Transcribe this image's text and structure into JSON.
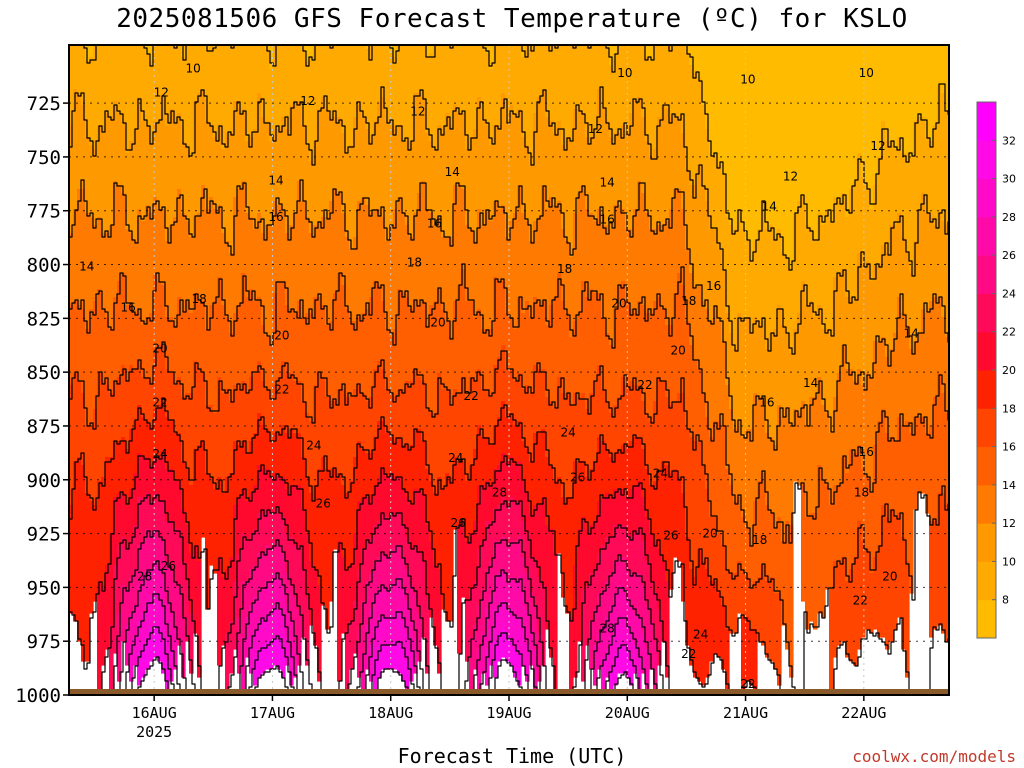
{
  "chart_data": {
    "type": "heatmap",
    "title": "2025081506 GFS Forecast Temperature (ºC) for KSLO",
    "xlabel": "Forecast Time (UTC)",
    "ylabel": "",
    "source": "coolwx.com/models",
    "y_axis": {
      "scale": "pressure (reversed)",
      "range": [
        1000,
        698
      ],
      "ticks": [
        "725",
        "750",
        "775",
        "800",
        "825",
        "850",
        "875",
        "900",
        "925",
        "950",
        "975",
        "1000"
      ]
    },
    "x_axis": {
      "range_days_from_16AUG_00Z": [
        -0.72,
        6.72
      ],
      "ticks": [
        {
          "label": "16AUG",
          "sub": "2025",
          "day": 0
        },
        {
          "label": "17AUG",
          "sub": "",
          "day": 1
        },
        {
          "label": "18AUG",
          "sub": "",
          "day": 2
        },
        {
          "label": "19AUG",
          "sub": "",
          "day": 3
        },
        {
          "label": "20AUG",
          "sub": "",
          "day": 4
        },
        {
          "label": "21AUG",
          "sub": "",
          "day": 5
        },
        {
          "label": "22AUG",
          "sub": "",
          "day": 6
        }
      ]
    },
    "grid": "dotted",
    "colorbar": {
      "levels": [
        6,
        8,
        10,
        12,
        14,
        16,
        18,
        20,
        22,
        24,
        26,
        28,
        30,
        32,
        34
      ],
      "tick_labels": [
        "8",
        "10",
        "12",
        "14",
        "16",
        "18",
        "20",
        "22",
        "24",
        "26",
        "28",
        "30",
        "32"
      ],
      "colors": [
        "#ffbb00",
        "#ffaa00",
        "#ff9900",
        "#ff7a00",
        "#ff5f00",
        "#ff4500",
        "#ff2200",
        "#ff0a2e",
        "#ff0a58",
        "#ff0a84",
        "#ff0aa8",
        "#ff0ac8",
        "#ff0ae6",
        "#ff00ff"
      ]
    },
    "surface_pressure_hpa": 1000,
    "contour_labels": [
      {
        "day": 0.33,
        "p": 709,
        "text": "10"
      },
      {
        "day": 3.98,
        "p": 711,
        "text": "10"
      },
      {
        "day": 5.02,
        "p": 714,
        "text": "10"
      },
      {
        "day": 6.02,
        "p": 711,
        "text": "10"
      },
      {
        "day": 0.06,
        "p": 720,
        "text": "12"
      },
      {
        "day": 1.3,
        "p": 724,
        "text": "12"
      },
      {
        "day": 2.23,
        "p": 729,
        "text": "12"
      },
      {
        "day": 3.73,
        "p": 737,
        "text": "12"
      },
      {
        "day": 6.12,
        "p": 745,
        "text": "12"
      },
      {
        "day": 5.38,
        "p": 759,
        "text": "12"
      },
      {
        "day": 1.03,
        "p": 761,
        "text": "14"
      },
      {
        "day": 2.52,
        "p": 757,
        "text": "14"
      },
      {
        "day": 3.83,
        "p": 762,
        "text": "14"
      },
      {
        "day": 5.2,
        "p": 773,
        "text": "14"
      },
      {
        "day": -0.57,
        "p": 801,
        "text": "14"
      },
      {
        "day": 6.4,
        "p": 832,
        "text": "14"
      },
      {
        "day": 5.55,
        "p": 855,
        "text": "14"
      },
      {
        "day": 1.03,
        "p": 778,
        "text": "16"
      },
      {
        "day": 2.37,
        "p": 781,
        "text": "16"
      },
      {
        "day": 3.83,
        "p": 779,
        "text": "16"
      },
      {
        "day": -0.22,
        "p": 820,
        "text": "16"
      },
      {
        "day": 4.73,
        "p": 810,
        "text": "16"
      },
      {
        "day": 5.18,
        "p": 864,
        "text": "16"
      },
      {
        "day": 6.02,
        "p": 887,
        "text": "16"
      },
      {
        "day": 0.38,
        "p": 816,
        "text": "18"
      },
      {
        "day": 2.2,
        "p": 799,
        "text": "18"
      },
      {
        "day": 3.47,
        "p": 802,
        "text": "18"
      },
      {
        "day": 4.52,
        "p": 817,
        "text": "18"
      },
      {
        "day": 5.12,
        "p": 928,
        "text": "18"
      },
      {
        "day": 5.98,
        "p": 906,
        "text": "18"
      },
      {
        "day": 0.05,
        "p": 839,
        "text": "20"
      },
      {
        "day": 1.08,
        "p": 833,
        "text": "20"
      },
      {
        "day": 2.4,
        "p": 827,
        "text": "20"
      },
      {
        "day": 3.93,
        "p": 818,
        "text": "20"
      },
      {
        "day": 4.43,
        "p": 840,
        "text": "20"
      },
      {
        "day": 4.7,
        "p": 925,
        "text": "20"
      },
      {
        "day": 6.22,
        "p": 945,
        "text": "20"
      },
      {
        "day": 0.05,
        "p": 864,
        "text": "22"
      },
      {
        "day": 1.08,
        "p": 858,
        "text": "22"
      },
      {
        "day": 2.68,
        "p": 861,
        "text": "22"
      },
      {
        "day": 4.15,
        "p": 856,
        "text": "22"
      },
      {
        "day": 4.52,
        "p": 981,
        "text": "22"
      },
      {
        "day": 5.97,
        "p": 956,
        "text": "22"
      },
      {
        "day": 5.02,
        "p": 995,
        "text": "22"
      },
      {
        "day": 0.05,
        "p": 888,
        "text": "24"
      },
      {
        "day": 1.35,
        "p": 884,
        "text": "24"
      },
      {
        "day": 2.55,
        "p": 890,
        "text": "24"
      },
      {
        "day": 3.5,
        "p": 878,
        "text": "24"
      },
      {
        "day": 4.28,
        "p": 897,
        "text": "24"
      },
      {
        "day": 4.62,
        "p": 972,
        "text": "24"
      },
      {
        "day": 1.43,
        "p": 911,
        "text": "26"
      },
      {
        "day": 2.57,
        "p": 920,
        "text": "26"
      },
      {
        "day": 0.12,
        "p": 940,
        "text": "26"
      },
      {
        "day": 3.58,
        "p": 899,
        "text": "26"
      },
      {
        "day": 4.37,
        "p": 926,
        "text": "26"
      },
      {
        "day": 2.92,
        "p": 906,
        "text": "28"
      },
      {
        "day": -0.08,
        "p": 945,
        "text": "28"
      },
      {
        "day": 3.83,
        "p": 969,
        "text": "28"
      }
    ],
    "diurnal_maxima_p_hpa": [
      {
        "day": -0.02,
        "p_top": 905,
        "max_c": 34
      },
      {
        "day": 0.98,
        "p_top": 915,
        "max_c": 34
      },
      {
        "day": 2.0,
        "p_top": 918,
        "max_c": 34
      },
      {
        "day": 2.98,
        "p_top": 910,
        "max_c": 34
      },
      {
        "day": 3.95,
        "p_top": 925,
        "max_c": 33
      },
      {
        "day": 5.0,
        "p_top": 965,
        "max_c": 24
      }
    ]
  }
}
